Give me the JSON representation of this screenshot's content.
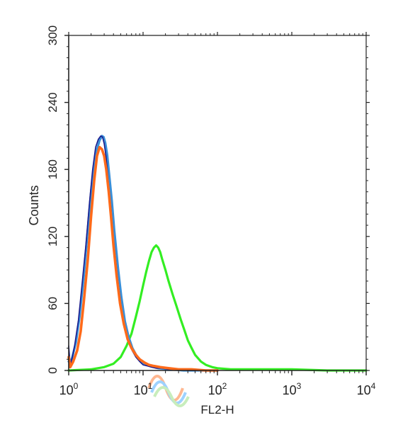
{
  "chart_data": {
    "type": "line",
    "title": "",
    "xlabel": "FL2-H",
    "ylabel": "Counts",
    "x_scale": "log",
    "xlim": [
      1,
      10000
    ],
    "ylim": [
      0,
      300
    ],
    "x_ticks": [
      {
        "value": 1,
        "base": "10",
        "exp": "0"
      },
      {
        "value": 10,
        "base": "10",
        "exp": "1"
      },
      {
        "value": 100,
        "base": "10",
        "exp": "2"
      },
      {
        "value": 1000,
        "base": "10",
        "exp": "3"
      },
      {
        "value": 10000,
        "base": "10",
        "exp": "4"
      }
    ],
    "y_ticks": [
      0,
      60,
      120,
      180,
      240,
      300
    ],
    "grid": false,
    "legend": "none",
    "series": [
      {
        "color": "#1a1a8c",
        "x": [
          1.0,
          1.05,
          1.12,
          1.2,
          1.35,
          1.5,
          1.7,
          1.9,
          2.1,
          2.3,
          2.5,
          2.7,
          2.85,
          3.0,
          3.2,
          3.4,
          3.7,
          4.0,
          4.5,
          5.0,
          5.6,
          6.3,
          7.1,
          8.0,
          9.0,
          10.0,
          11.5,
          13.0,
          15.0,
          18.0,
          22.0,
          28.0,
          40.0,
          60.0,
          100.0
        ],
        "y": [
          22,
          5,
          12,
          22,
          45,
          75,
          112,
          150,
          180,
          200,
          207,
          210,
          209,
          203,
          190,
          170,
          145,
          118,
          85,
          60,
          40,
          28,
          18,
          12,
          8,
          5,
          4,
          3,
          2,
          2,
          1,
          1,
          0,
          0,
          0
        ]
      },
      {
        "color": "#3a8fd8",
        "x": [
          1.0,
          1.1,
          1.25,
          1.4,
          1.6,
          1.8,
          2.0,
          2.2,
          2.4,
          2.6,
          2.8,
          2.95,
          3.1,
          3.3,
          3.5,
          3.8,
          4.1,
          4.6,
          5.1,
          5.7,
          6.4,
          7.2,
          8.2,
          9.5,
          11.0,
          13.0,
          16.0,
          22.0,
          35.0,
          60.0,
          100.0
        ],
        "y": [
          8,
          10,
          25,
          48,
          85,
          125,
          160,
          185,
          198,
          206,
          210,
          209,
          204,
          193,
          176,
          152,
          126,
          92,
          66,
          44,
          30,
          20,
          13,
          8,
          5,
          4,
          2,
          1,
          0,
          0,
          0
        ]
      },
      {
        "color": "#ff6a1a",
        "x": [
          1.0,
          1.05,
          1.15,
          1.3,
          1.45,
          1.6,
          1.8,
          2.0,
          2.2,
          2.4,
          2.6,
          2.8,
          3.0,
          3.2,
          3.45,
          3.7,
          4.0,
          4.4,
          4.9,
          5.5,
          6.2,
          7.0,
          8.0,
          9.0,
          10.5,
          12.0,
          14.0,
          17.0,
          22.0,
          30.0,
          45.0,
          70.0,
          100.0
        ],
        "y": [
          12,
          3,
          8,
          18,
          35,
          62,
          98,
          138,
          170,
          192,
          200,
          198,
          192,
          180,
          160,
          138,
          112,
          85,
          60,
          42,
          28,
          20,
          14,
          10,
          7,
          5,
          4,
          3,
          2,
          1,
          1,
          0,
          0
        ]
      },
      {
        "color": "#33ee22",
        "x": [
          1.0,
          2.0,
          3.0,
          4.0,
          5.0,
          6.0,
          7.0,
          8.0,
          9.0,
          10.0,
          11.0,
          12.0,
          13.0,
          14.0,
          15.0,
          16.0,
          17.0,
          18.0,
          20.0,
          22.0,
          25.0,
          28.0,
          32.0,
          36.0,
          40.0,
          45.0,
          50.0,
          60.0,
          70.0,
          85.0,
          100.0,
          150.0,
          250.0,
          500.0,
          1000.0,
          3000.0,
          10000.0
        ],
        "y": [
          0,
          1,
          3,
          6,
          12,
          22,
          33,
          48,
          62,
          76,
          88,
          98,
          106,
          110,
          112,
          110,
          106,
          100,
          90,
          80,
          68,
          58,
          46,
          36,
          27,
          20,
          14,
          8,
          5,
          3,
          2,
          1,
          1,
          1,
          1,
          0,
          0
        ]
      }
    ]
  }
}
